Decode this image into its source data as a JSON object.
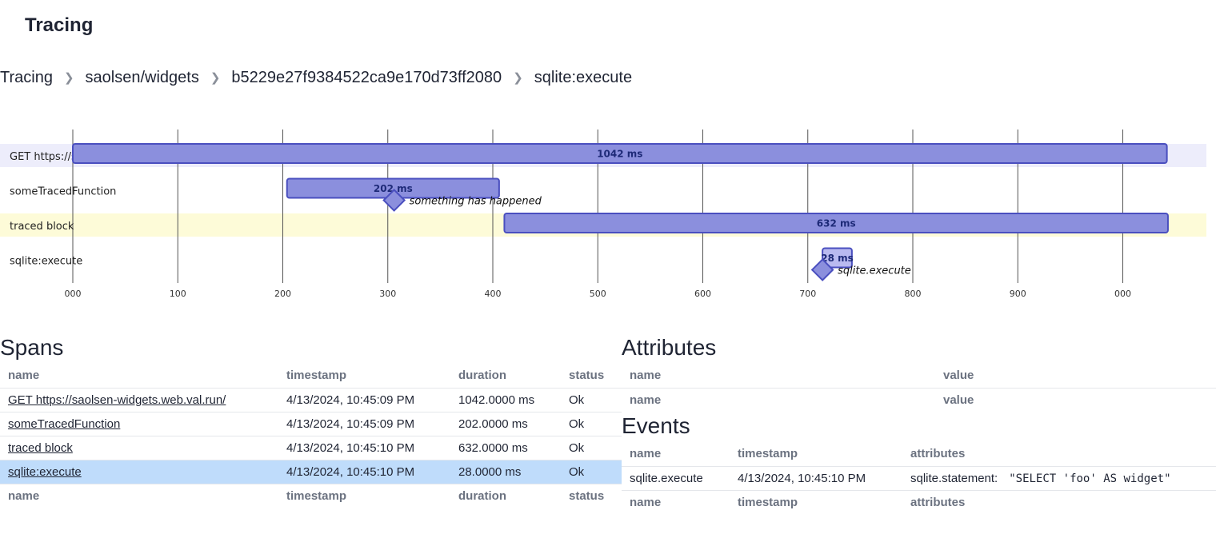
{
  "header": {
    "title": "Tracing"
  },
  "breadcrumb": [
    "Tracing",
    "saolsen/widgets",
    "b5229e27f9384522ca9e170d73ff2080",
    "sqlite:execute"
  ],
  "timeline": {
    "axis_ticks": [
      "000",
      "100",
      "200",
      "300",
      "400",
      "500",
      "600",
      "700",
      "800",
      "900",
      "000"
    ],
    "rows": [
      {
        "label": "GET https://saolsen-widgets.web.val.run/",
        "highlight": "#ededfb"
      },
      {
        "label": "someTracedFunction",
        "highlight": ""
      },
      {
        "label": "traced block",
        "highlight": "#fdfbd8"
      },
      {
        "label": "sqlite:execute",
        "highlight": ""
      }
    ],
    "spans": [
      {
        "row": 0,
        "start": 0,
        "duration": 1042,
        "label": "1042 ms",
        "color": "#8b8fdd"
      },
      {
        "row": 1,
        "start": 204,
        "duration": 202,
        "label": "202 ms",
        "color": "#8b8fdd"
      },
      {
        "row": 2,
        "start": 411,
        "duration": 632,
        "label": "632 ms",
        "color": "#8b8fdd"
      },
      {
        "row": 3,
        "start": 714,
        "duration": 28,
        "label": "28 ms",
        "color": "#b9baf0"
      }
    ],
    "events": [
      {
        "row": 1,
        "at": 306,
        "label": "something has happened"
      },
      {
        "row": 3,
        "at": 714,
        "label": "sqlite.execute"
      }
    ]
  },
  "spans_section": {
    "title": "Spans",
    "columns": [
      "name",
      "timestamp",
      "duration",
      "status"
    ],
    "rows": [
      {
        "name": "GET https://saolsen-widgets.web.val.run/",
        "timestamp": "4/13/2024, 10:45:09 PM",
        "duration": "1042.0000 ms",
        "status": "Ok",
        "selected": false
      },
      {
        "name": "someTracedFunction",
        "timestamp": "4/13/2024, 10:45:09 PM",
        "duration": "202.0000 ms",
        "status": "Ok",
        "selected": false
      },
      {
        "name": "traced block",
        "timestamp": "4/13/2024, 10:45:10 PM",
        "duration": "632.0000 ms",
        "status": "Ok",
        "selected": false
      },
      {
        "name": "sqlite:execute",
        "timestamp": "4/13/2024, 10:45:10 PM",
        "duration": "28.0000 ms",
        "status": "Ok",
        "selected": true
      }
    ]
  },
  "attributes_section": {
    "title": "Attributes",
    "columns": [
      "name",
      "value"
    ]
  },
  "events_section": {
    "title": "Events",
    "columns": [
      "name",
      "timestamp",
      "attributes"
    ],
    "rows": [
      {
        "name": "sqlite.execute",
        "timestamp": "4/13/2024, 10:45:10 PM",
        "attr_key": "sqlite.statement:",
        "attr_value": "\"SELECT 'foo' AS widget\""
      }
    ]
  },
  "colors": {
    "span_stroke": "#4a4fbf",
    "selected_row": "#bfdcfb",
    "grid_line": "#555555"
  }
}
